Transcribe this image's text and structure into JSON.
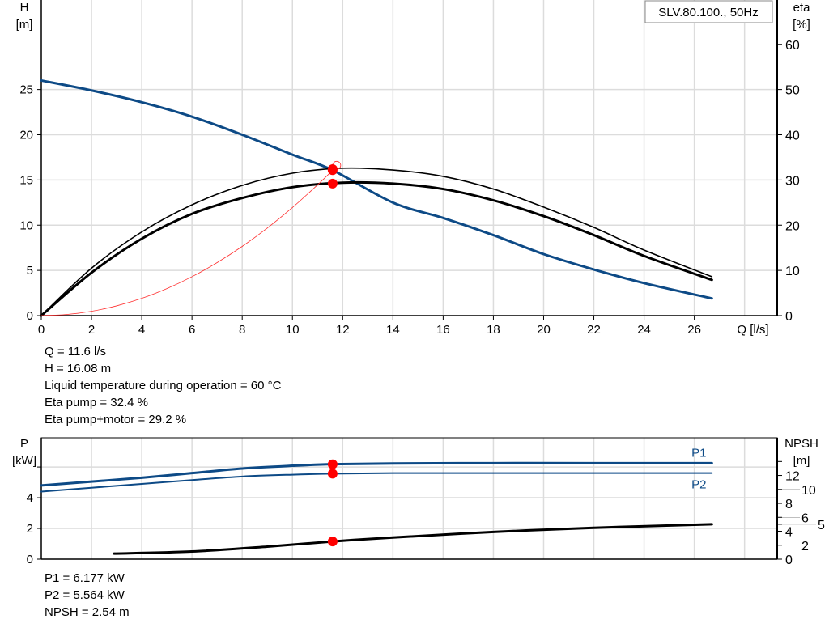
{
  "chart_data": [
    {
      "type": "line",
      "legend_box": "SLV.80.100., 50Hz",
      "xlabel": "Q [l/s]",
      "ylabel_left": [
        "H",
        "[m]"
      ],
      "ylabel_right": [
        "eta",
        "[%]"
      ],
      "xlim": [
        0,
        29.3
      ],
      "ylim_left": [
        0,
        34.9
      ],
      "ylim_right": [
        0,
        69.8
      ],
      "xticks": [
        0,
        2,
        4,
        6,
        8,
        10,
        12,
        14,
        16,
        18,
        20,
        22,
        24,
        26
      ],
      "yticks_left": [
        0,
        5,
        10,
        15,
        20,
        25
      ],
      "yticks_right": [
        0,
        10,
        20,
        30,
        40,
        50,
        60
      ],
      "grid": true,
      "colors": {
        "head": "#0d4a86",
        "eta": "#000000",
        "system": "#ff3030",
        "marker": "#ff0000"
      },
      "series": [
        {
          "key": "H",
          "axis": "left",
          "width": 3,
          "color": "#0d4a86",
          "x": [
            0,
            2,
            4,
            6,
            8,
            10,
            11.6,
            14,
            16,
            18,
            20,
            22,
            24,
            26.7
          ],
          "y": [
            26,
            24.9,
            23.6,
            22,
            20,
            17.8,
            16.08,
            12.5,
            10.8,
            8.9,
            6.8,
            5.1,
            3.6,
            1.9
          ]
        },
        {
          "key": "eta_pump",
          "axis": "right",
          "width": 1.6,
          "color": "#000000",
          "x": [
            0,
            2,
            4,
            6,
            8,
            10,
            12,
            14,
            16,
            18,
            20,
            22,
            24,
            26.7
          ],
          "y": [
            0,
            10.5,
            18.5,
            24.5,
            28.8,
            31.5,
            32.6,
            32.2,
            30.8,
            28,
            24,
            19.5,
            14.5,
            8.6
          ]
        },
        {
          "key": "eta_pump_motor",
          "axis": "right",
          "width": 3,
          "color": "#000000",
          "x": [
            0,
            2,
            4,
            6,
            8,
            10,
            12,
            14,
            16,
            18,
            20,
            22,
            24,
            26.7
          ],
          "y": [
            0,
            9.5,
            17,
            22.5,
            26,
            28.4,
            29.4,
            29.2,
            28,
            25.5,
            22,
            17.8,
            13.2,
            7.9
          ]
        },
        {
          "key": "system",
          "axis": "left",
          "width": 0.8,
          "color": "#ff3030",
          "x": [
            0,
            1,
            2,
            3,
            4,
            5,
            6,
            7,
            8,
            9,
            10,
            11,
            11.6
          ],
          "y": [
            0,
            0.12,
            0.48,
            1.08,
            1.91,
            2.99,
            4.3,
            5.86,
            7.65,
            9.68,
            11.95,
            14.46,
            16.08
          ]
        }
      ],
      "operating_points": [
        {
          "x": 11.6,
          "y": 16.08,
          "axis": "left"
        },
        {
          "x": 11.6,
          "y": 32.4,
          "axis": "right"
        },
        {
          "x": 11.6,
          "y": 29.2,
          "axis": "right"
        }
      ]
    },
    {
      "type": "line",
      "ylabel_left": [
        "P",
        "[kW]"
      ],
      "ylabel_right": [
        "NPSH",
        "[m]"
      ],
      "xlim": [
        0,
        29.3
      ],
      "ylim_left": [
        0,
        7.9
      ],
      "ylim_right": [
        0,
        17.4
      ],
      "yticks_left": [
        0,
        2,
        4,
        6
      ],
      "yticks_left_labels": [
        "0",
        "2",
        "4",
        ""
      ],
      "yticks_right": [
        0,
        2,
        4,
        5,
        6,
        8,
        10,
        12,
        14
      ],
      "yticks_right_labels": [
        "0",
        "2",
        "4",
        "5",
        "6",
        "8",
        "10",
        "12",
        ""
      ],
      "grid": true,
      "series": [
        {
          "name": "P1",
          "axis": "left",
          "width": 3,
          "color": "#0d4a86",
          "x": [
            0,
            2,
            4,
            6,
            8,
            10,
            11.6,
            14,
            18,
            22,
            26.7
          ],
          "y": [
            4.8,
            5.05,
            5.3,
            5.6,
            5.9,
            6.08,
            6.18,
            6.23,
            6.25,
            6.25,
            6.25
          ]
        },
        {
          "name": "P2",
          "axis": "left",
          "width": 2,
          "color": "#0d4a86",
          "x": [
            0,
            2,
            4,
            6,
            8,
            10,
            11.6,
            14,
            18,
            22,
            26.7
          ],
          "y": [
            4.4,
            4.65,
            4.9,
            5.15,
            5.38,
            5.5,
            5.56,
            5.6,
            5.6,
            5.6,
            5.6
          ]
        },
        {
          "key": "NPSH",
          "axis": "right",
          "width": 3,
          "color": "#000000",
          "x": [
            2.9,
            6,
            9,
            11.6,
            14,
            18,
            22,
            26.7
          ],
          "y": [
            0.8,
            1.1,
            1.8,
            2.54,
            3.1,
            3.9,
            4.5,
            5.0
          ]
        }
      ],
      "operating_points": [
        {
          "x": 11.6,
          "y": 6.177,
          "axis": "left"
        },
        {
          "x": 11.6,
          "y": 5.564,
          "axis": "left"
        },
        {
          "x": 11.6,
          "y": 2.54,
          "axis": "right"
        }
      ]
    }
  ],
  "info_top": [
    "Q = 11.6 l/s",
    "H = 16.08 m",
    "Liquid temperature during operation = 60 °C",
    "Eta pump = 32.4 %",
    "Eta pump+motor = 29.2 %"
  ],
  "info_bottom": [
    "P1 = 6.177 kW",
    "P2 = 5.564 kW",
    "NPSH = 2.54 m"
  ]
}
